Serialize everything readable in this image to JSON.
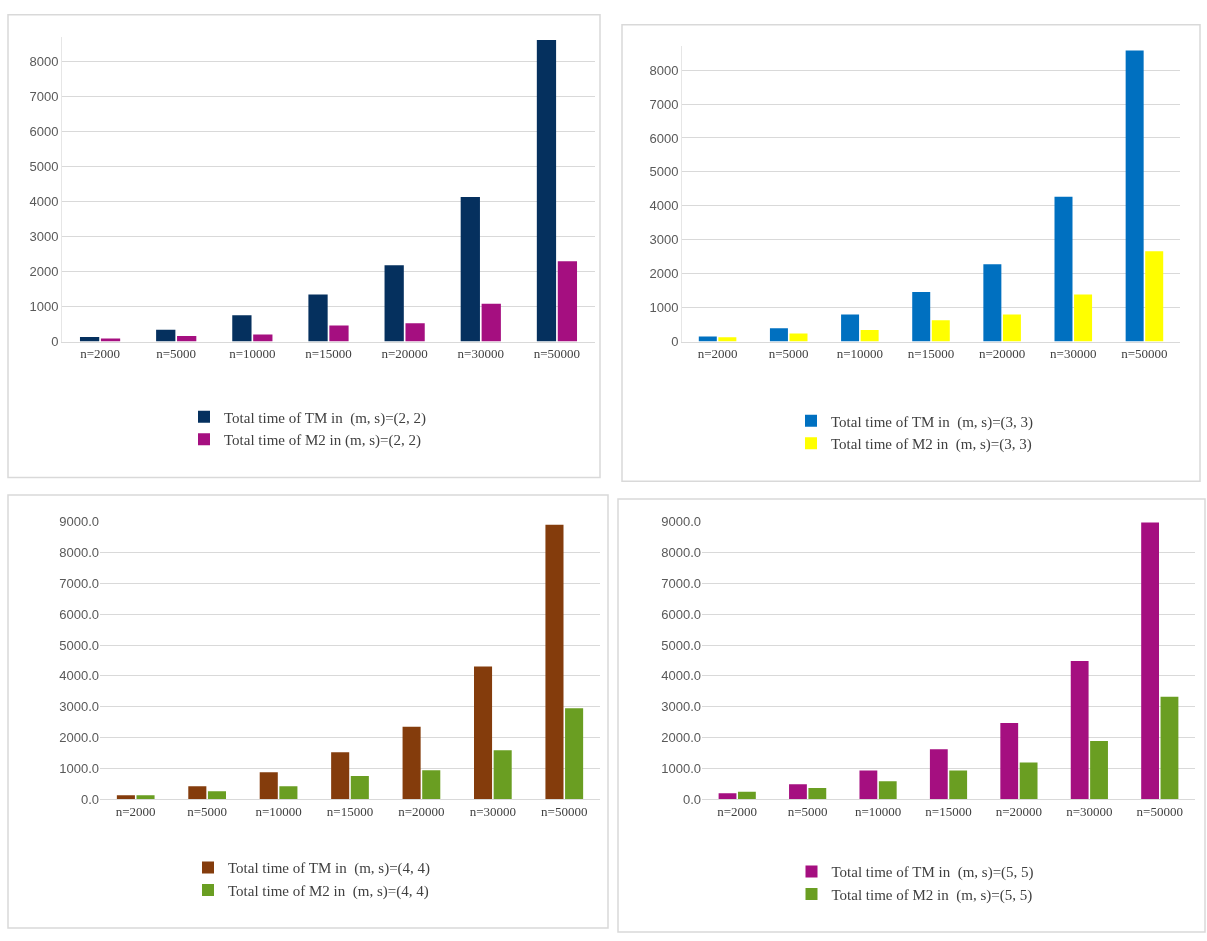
{
  "chart_data": [
    {
      "type": "bar",
      "categories": [
        "n=2000",
        "n=5000",
        "n=10000",
        "n=15000",
        "n=20000",
        "n=30000",
        "n=50000"
      ],
      "series": [
        {
          "name": "Total time of TM in  (m, s)=(2, 2)",
          "color": "#05305e",
          "values": [
            130,
            340,
            750,
            1340,
            2180,
            4120,
            8600
          ]
        },
        {
          "name": "Total time of M2 in (m, s)=(2, 2)",
          "color": "#a50f80",
          "values": [
            90,
            160,
            200,
            460,
            520,
            1080,
            2290
          ]
        }
      ],
      "ylim": [
        0,
        8700
      ],
      "yticks": [
        0,
        1000,
        2000,
        3000,
        4000,
        5000,
        6000,
        7000,
        8000
      ],
      "grid": "y",
      "legend": "bottom"
    },
    {
      "type": "bar",
      "categories": [
        "n=2000",
        "n=5000",
        "n=10000",
        "n=15000",
        "n=20000",
        "n=30000",
        "n=50000"
      ],
      "series": [
        {
          "name": "Total time of TM in  (m, s)=(3, 3)",
          "color": "#0070c0",
          "values": [
            150,
            390,
            800,
            1460,
            2280,
            4270,
            8580
          ]
        },
        {
          "name": "Total time of M2 in  (m, s)=(3, 3)",
          "color": "#ffff00",
          "values": [
            130,
            240,
            340,
            630,
            800,
            1390,
            2660
          ]
        }
      ],
      "ylim": [
        0,
        8700
      ],
      "yticks": [
        0,
        1000,
        2000,
        3000,
        4000,
        5000,
        6000,
        7000,
        8000
      ],
      "grid": "y",
      "legend": "bottom"
    },
    {
      "type": "bar",
      "categories": [
        "n=2000",
        "n=5000",
        "n=10000",
        "n=15000",
        "n=20000",
        "n=30000",
        "n=50000"
      ],
      "series": [
        {
          "name": "Total time of TM in  (m, s)=(4, 4)",
          "color": "#843c0c",
          "values": [
            130,
            420,
            870,
            1520,
            2350,
            4300,
            8900
          ]
        },
        {
          "name": "Total time of M2 in  (m, s)=(4, 4)",
          "color": "#6a9e22",
          "values": [
            130,
            260,
            420,
            750,
            940,
            1590,
            2950
          ]
        }
      ],
      "ylim": [
        0,
        9000
      ],
      "yticks": [
        {
          "value": 0,
          "label": "0.0"
        },
        {
          "value": 1000,
          "label": "1000.0"
        },
        {
          "value": 2000,
          "label": "2000.0"
        },
        {
          "value": 3000,
          "label": "3000.0"
        },
        {
          "value": 4000,
          "label": "4000.0"
        },
        {
          "value": 5000,
          "label": "5000.0"
        },
        {
          "value": 6000,
          "label": "6000.0"
        },
        {
          "value": 7000,
          "label": "7000.0"
        },
        {
          "value": 8000,
          "label": "8000.0"
        },
        {
          "value": 9000,
          "label": "9000.0"
        }
      ],
      "grid": "y",
      "legend": "bottom"
    },
    {
      "type": "bar",
      "categories": [
        "n=2000",
        "n=5000",
        "n=10000",
        "n=15000",
        "n=20000",
        "n=30000",
        "n=50000"
      ],
      "series": [
        {
          "name": "Total time of TM in  (m, s)=(5, 5)",
          "color": "#a50f80",
          "values": [
            190,
            480,
            930,
            1620,
            2470,
            4480,
            8970
          ]
        },
        {
          "name": "Total time of M2 in  (m, s)=(5, 5)",
          "color": "#6a9e22",
          "values": [
            240,
            360,
            580,
            930,
            1190,
            1890,
            3320
          ]
        }
      ],
      "ylim": [
        0,
        9000
      ],
      "yticks": [
        {
          "value": 0,
          "label": "0.0"
        },
        {
          "value": 1000,
          "label": "1000.0"
        },
        {
          "value": 2000,
          "label": "2000.0"
        },
        {
          "value": 3000,
          "label": "3000.0"
        },
        {
          "value": 4000,
          "label": "4000.0"
        },
        {
          "value": 5000,
          "label": "5000.0"
        },
        {
          "value": 6000,
          "label": "6000.0"
        },
        {
          "value": 7000,
          "label": "7000.0"
        },
        {
          "value": 8000,
          "label": "8000.0"
        },
        {
          "value": 9000,
          "label": "9000.0"
        }
      ],
      "grid": "y",
      "legend": "bottom"
    }
  ]
}
